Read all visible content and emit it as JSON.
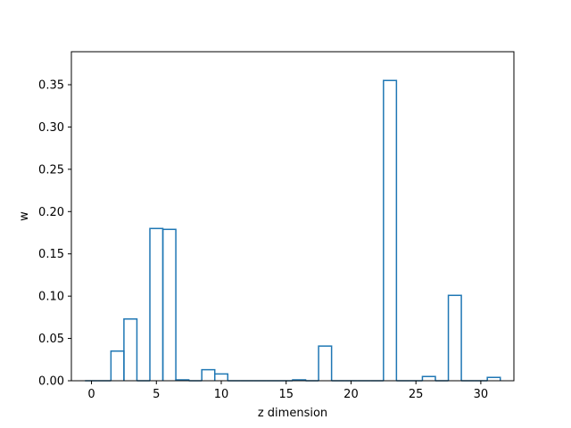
{
  "chart_data": {
    "type": "bar",
    "style": "step-histogram",
    "title": "",
    "xlabel": "z dimension",
    "ylabel": "w",
    "xlim": [
      -1.55,
      32.55
    ],
    "ylim": [
      0,
      0.389
    ],
    "xticks": [
      0,
      5,
      10,
      15,
      20,
      25,
      30
    ],
    "yticks": [
      0.0,
      0.05,
      0.1,
      0.15,
      0.2,
      0.25,
      0.3,
      0.35
    ],
    "ytick_labels": [
      "0.00",
      "0.05",
      "0.10",
      "0.15",
      "0.20",
      "0.25",
      "0.30",
      "0.35"
    ],
    "grid": false,
    "categories": [
      0,
      1,
      2,
      3,
      4,
      5,
      6,
      7,
      8,
      9,
      10,
      11,
      12,
      13,
      14,
      15,
      16,
      17,
      18,
      19,
      20,
      21,
      22,
      23,
      24,
      25,
      26,
      27,
      28,
      29,
      30,
      31
    ],
    "values": [
      0.0,
      0.0,
      0.035,
      0.073,
      0.0,
      0.18,
      0.179,
      0.001,
      0.0,
      0.013,
      0.008,
      0.0,
      0.0,
      0.0,
      0.0,
      0.0,
      0.001,
      0.0,
      0.041,
      0.0,
      0.0,
      0.0,
      0.0,
      0.355,
      0.0,
      0.0,
      0.005,
      0.0,
      0.101,
      0.0,
      0.0,
      0.004
    ],
    "colors": {
      "line": "#1f77b4",
      "axes": "#000000"
    }
  }
}
